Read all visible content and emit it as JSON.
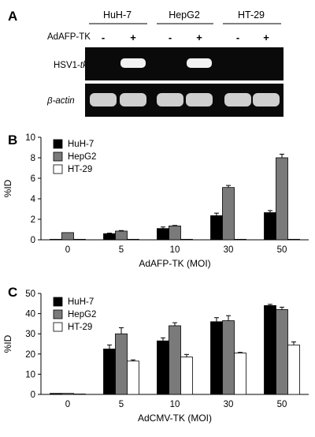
{
  "panels": {
    "a": "A",
    "b": "B",
    "c": "C"
  },
  "gel": {
    "cell_lines": [
      "HuH-7",
      "HepG2",
      "HT-29"
    ],
    "treatment_label": "AdAFP-TK",
    "lane_signs": [
      "-",
      "+",
      "-",
      "+",
      "-",
      "+"
    ],
    "row_labels": {
      "tk_prefix": "HSV1-",
      "tk_suffix": "tk",
      "actin": "β-actin"
    },
    "tk_band_present": [
      false,
      true,
      false,
      true,
      false,
      false
    ],
    "actin_band_present": [
      true,
      true,
      true,
      true,
      true,
      true
    ]
  },
  "chart_data": [
    {
      "type": "bar",
      "panel": "B",
      "categories": [
        "0",
        "5",
        "10",
        "30",
        "50"
      ],
      "xlabel": "AdAFP-TK (MOI)",
      "ylabel": "%ID",
      "ylim": [
        0,
        10
      ],
      "yticks": [
        0,
        2,
        4,
        6,
        8,
        10
      ],
      "legend_placement": "top-left",
      "series": [
        {
          "name": "HuH-7",
          "color": "#000000",
          "values": [
            0.05,
            0.6,
            1.1,
            2.35,
            2.65
          ],
          "errors": [
            0,
            0.05,
            0.15,
            0.25,
            0.2
          ]
        },
        {
          "name": "HepG2",
          "color": "#7a7a7a",
          "values": [
            0.7,
            0.85,
            1.35,
            5.1,
            8.0
          ],
          "errors": [
            0,
            0.05,
            0.05,
            0.2,
            0.35
          ]
        },
        {
          "name": "HT-29",
          "color": "#ffffff",
          "values": [
            0.05,
            0.05,
            0.05,
            0.05,
            0.05
          ],
          "errors": [
            0,
            0,
            0,
            0,
            0
          ]
        }
      ]
    },
    {
      "type": "bar",
      "panel": "C",
      "categories": [
        "0",
        "5",
        "10",
        "30",
        "50"
      ],
      "xlabel": "AdCMV-TK (MOI)",
      "ylabel": "%ID",
      "ylim": [
        0,
        50
      ],
      "yticks": [
        0,
        10,
        20,
        30,
        40,
        50
      ],
      "legend_placement": "top-left",
      "series": [
        {
          "name": "HuH-7",
          "color": "#000000",
          "values": [
            0.5,
            22.5,
            26.5,
            36,
            44
          ],
          "errors": [
            0,
            2,
            1.5,
            2,
            0.6
          ]
        },
        {
          "name": "HepG2",
          "color": "#7a7a7a",
          "values": [
            0.5,
            30,
            34,
            36.5,
            42
          ],
          "errors": [
            0,
            3,
            1.5,
            2.5,
            1.2
          ]
        },
        {
          "name": "HT-29",
          "color": "#ffffff",
          "values": [
            0,
            16.5,
            18.5,
            20.5,
            24.5
          ],
          "errors": [
            0,
            0.6,
            1.3,
            0.3,
            1.5
          ]
        }
      ]
    }
  ]
}
